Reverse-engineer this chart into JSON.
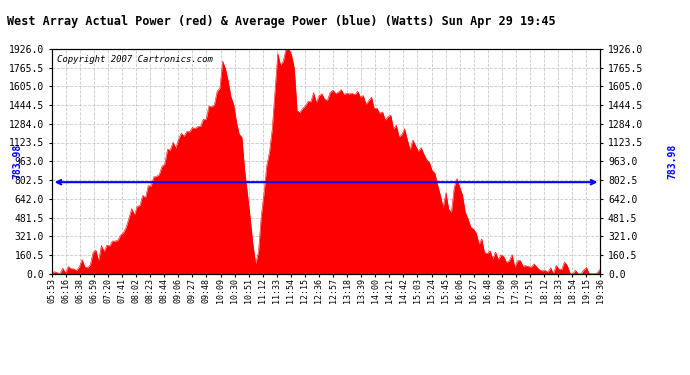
{
  "title": "West Array Actual Power (red) & Average Power (blue) (Watts) Sun Apr 29 19:45",
  "copyright": "Copyright 2007 Cartronics.com",
  "average_value": 783.98,
  "y_ticks": [
    0.0,
    160.5,
    321.0,
    481.5,
    642.0,
    802.5,
    963.0,
    1123.5,
    1284.0,
    1444.5,
    1605.0,
    1765.5,
    1926.0
  ],
  "y_max": 1926.0,
  "y_min": 0.0,
  "background_color": "#ffffff",
  "fill_color": "#ff0000",
  "avg_line_color": "#0000ff",
  "grid_color": "#bbbbbb",
  "x_labels": [
    "05:53",
    "06:16",
    "06:38",
    "06:59",
    "07:20",
    "07:41",
    "08:02",
    "08:23",
    "08:44",
    "09:06",
    "09:27",
    "09:48",
    "10:09",
    "10:30",
    "10:51",
    "11:12",
    "11:33",
    "11:54",
    "12:15",
    "12:36",
    "12:57",
    "13:18",
    "13:39",
    "14:00",
    "14:21",
    "14:42",
    "15:03",
    "15:24",
    "15:45",
    "16:06",
    "16:27",
    "16:48",
    "17:09",
    "17:30",
    "17:51",
    "18:12",
    "18:33",
    "18:54",
    "19:15",
    "19:36"
  ],
  "n_points": 200,
  "curve_seed": 10
}
